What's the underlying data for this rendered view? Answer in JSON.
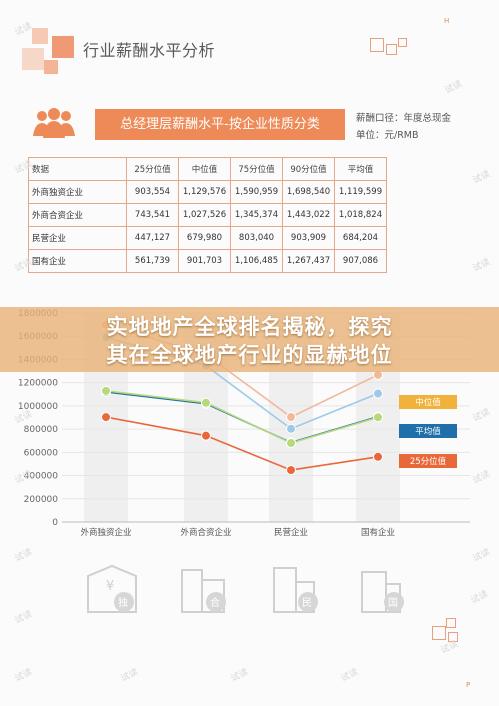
{
  "page": {
    "section_title": "行业薪酬水平分析",
    "corner_top": "H",
    "corner_bottom": "P"
  },
  "banner": {
    "title": "总经理层薪酬水平-按企业性质分类"
  },
  "caliber": {
    "line1": "薪酬口径：年度总现金",
    "line2": "单位：元/RMB"
  },
  "table": {
    "headers": [
      "数据",
      "25分位值",
      "中位值",
      "75分位值",
      "90分位值",
      "平均值"
    ],
    "rows": [
      [
        "外商独资企业",
        "903,554",
        "1,129,576",
        "1,590,959",
        "1,698,540",
        "1,119,599"
      ],
      [
        "外商合资企业",
        "743,541",
        "1,027,526",
        "1,345,374",
        "1,443,022",
        "1,018,824"
      ],
      [
        "民营企业",
        "447,127",
        "679,980",
        "803,040",
        "903,909",
        "684,204"
      ],
      [
        "国有企业",
        "561,739",
        "901,703",
        "1,106,485",
        "1,267,437",
        "907,086"
      ]
    ]
  },
  "overlay": {
    "line1": "实地地产全球排名揭秘，探究",
    "line2": "其在全球地产行业的显赫地位"
  },
  "watermark": "试读",
  "chart_data": {
    "type": "line",
    "categories": [
      "外商独资企业",
      "外商合资企业",
      "民营企业",
      "国有企业"
    ],
    "ylim": [
      0,
      1800000
    ],
    "yticks": [
      "0",
      "200000",
      "400000",
      "600000",
      "800000",
      "1000000",
      "1200000",
      "1400000",
      "1600000",
      "1800000"
    ],
    "series": [
      {
        "name": "25分位值",
        "color": "#e8683a",
        "values": [
          903554,
          743541,
          447127,
          561739
        ]
      },
      {
        "name": "平均值",
        "color": "#1f6fa8",
        "values": [
          1119599,
          1018824,
          684204,
          907086
        ]
      },
      {
        "name": "中位值",
        "color": "#b7d97c",
        "values": [
          1129576,
          1027526,
          679980,
          901703
        ]
      },
      {
        "name": "75分位值",
        "color": "#9ec9e8",
        "values": [
          1590959,
          1345374,
          803040,
          1106485
        ]
      },
      {
        "name": "90分位值",
        "color": "#f3b79b",
        "values": [
          1698540,
          1443022,
          903909,
          1267437
        ]
      }
    ],
    "legend_visible": [
      {
        "name": "中位值",
        "color": "#f0b23b"
      },
      {
        "name": "平均值",
        "color": "#1f6fa8"
      },
      {
        "name": "25分位值",
        "color": "#e8683a"
      }
    ],
    "grid": true,
    "legend_position": "right"
  },
  "bottom_icons": [
    {
      "glyph": "独",
      "icon": "building-foreign-owned-icon"
    },
    {
      "glyph": "合",
      "icon": "building-joint-venture-icon"
    },
    {
      "glyph": "民",
      "icon": "building-private-icon"
    },
    {
      "glyph": "国",
      "icon": "building-state-owned-icon"
    }
  ]
}
